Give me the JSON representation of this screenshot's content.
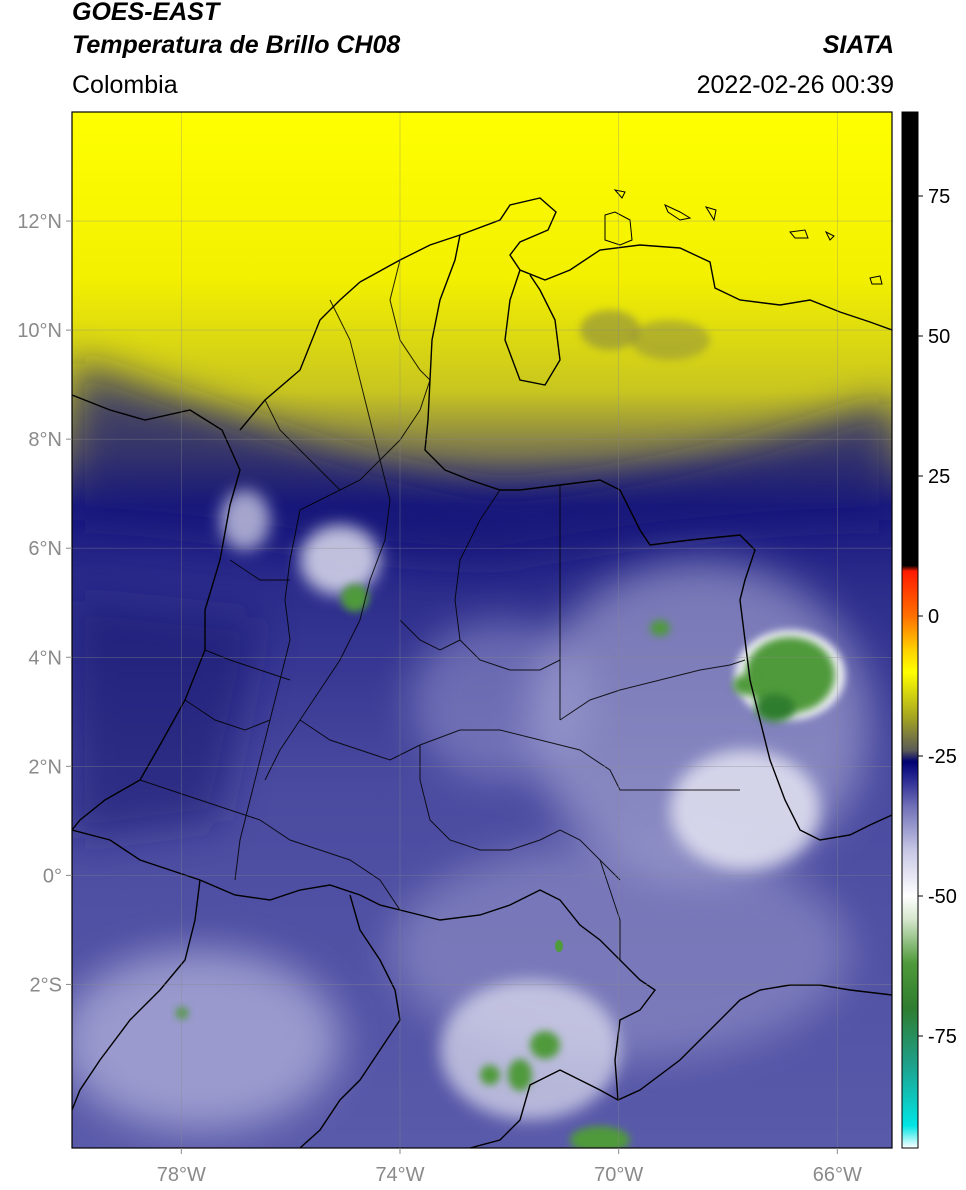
{
  "header": {
    "satellite": "GOES-EAST",
    "product": "Temperatura de Brillo CH08",
    "region": "Colombia",
    "agency": "SIATA",
    "timestamp": "2022-02-26 00:39"
  },
  "map": {
    "lon_range": [
      -80,
      -65
    ],
    "lat_range": [
      -5,
      14
    ],
    "lat_ticks": [
      {
        "value": 12,
        "label": "12°N"
      },
      {
        "value": 10,
        "label": "10°N"
      },
      {
        "value": 8,
        "label": "8°N"
      },
      {
        "value": 6,
        "label": "6°N"
      },
      {
        "value": 4,
        "label": "4°N"
      },
      {
        "value": 2,
        "label": "2°N"
      },
      {
        "value": 0,
        "label": "0°"
      },
      {
        "value": -2,
        "label": "2°S"
      }
    ],
    "lon_ticks": [
      {
        "value": -78,
        "label": "78°W"
      },
      {
        "value": -74,
        "label": "74°W"
      },
      {
        "value": -70,
        "label": "70°W"
      },
      {
        "value": -66,
        "label": "66°W"
      }
    ],
    "gridlines": true
  },
  "colorbar": {
    "range": [
      -95,
      90
    ],
    "ticks": [
      {
        "value": 75,
        "label": "75"
      },
      {
        "value": 50,
        "label": "50"
      },
      {
        "value": 25,
        "label": "25"
      },
      {
        "value": 0,
        "label": "0"
      },
      {
        "value": -25,
        "label": "-25"
      },
      {
        "value": -50,
        "label": "-50"
      },
      {
        "value": -75,
        "label": "-75"
      }
    ],
    "stops": [
      {
        "value": -95,
        "color": "#ffffff"
      },
      {
        "value": -91,
        "color": "#00e5e5"
      },
      {
        "value": -80,
        "color": "#1fa08a"
      },
      {
        "value": -70,
        "color": "#2f7d2f"
      },
      {
        "value": -62,
        "color": "#4f9a3a"
      },
      {
        "value": -54,
        "color": "#d8e8d0"
      },
      {
        "value": -50,
        "color": "#ffffff"
      },
      {
        "value": -42,
        "color": "#c8c8e6"
      },
      {
        "value": -34,
        "color": "#7070b8"
      },
      {
        "value": -28,
        "color": "#1a1a8a"
      },
      {
        "value": -26,
        "color": "#000070"
      },
      {
        "value": -24,
        "color": "#5a5a58"
      },
      {
        "value": -18,
        "color": "#a6a620"
      },
      {
        "value": -10,
        "color": "#ffff00"
      },
      {
        "value": -6,
        "color": "#ffd000"
      },
      {
        "value": 0,
        "color": "#ff7000"
      },
      {
        "value": 8,
        "color": "#ff1a00"
      },
      {
        "value": 9,
        "color": "#000000"
      },
      {
        "value": 90,
        "color": "#000000"
      }
    ]
  }
}
